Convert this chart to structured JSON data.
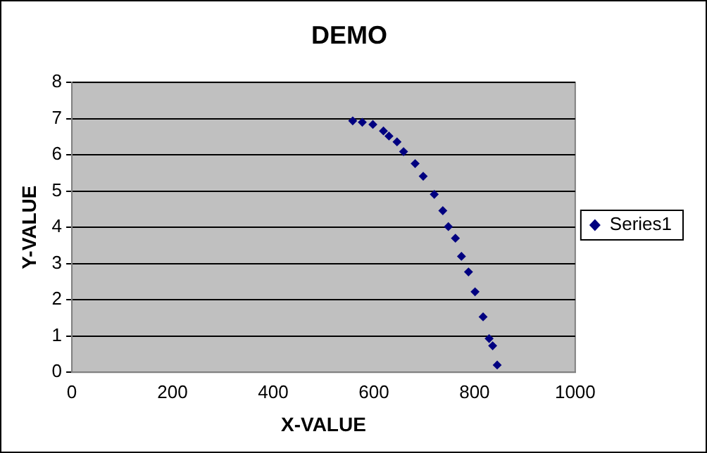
{
  "chart_data": {
    "type": "scatter",
    "title": "DEMO",
    "xlabel": "X-VALUE",
    "ylabel": "Y-VALUE",
    "xlim": [
      0,
      1000
    ],
    "xticks": [
      0,
      200,
      400,
      600,
      800,
      1000
    ],
    "ylim": [
      0,
      8
    ],
    "yticks": [
      0,
      1,
      2,
      3,
      4,
      5,
      6,
      7,
      8
    ],
    "grid": "y",
    "legend": "right",
    "marker": "diamond",
    "series": [
      {
        "name": "Series1",
        "color": "#000080",
        "x": [
          558,
          577,
          598,
          619,
          630,
          646,
          659,
          682,
          698,
          720,
          737,
          748,
          762,
          774,
          788,
          801,
          817,
          829,
          836,
          845
        ],
        "values": [
          6.94,
          6.9,
          6.84,
          6.66,
          6.52,
          6.36,
          6.09,
          5.76,
          5.41,
          4.91,
          4.46,
          4.02,
          3.7,
          3.2,
          2.77,
          2.22,
          1.53,
          0.93,
          0.73,
          0.2
        ]
      }
    ]
  }
}
